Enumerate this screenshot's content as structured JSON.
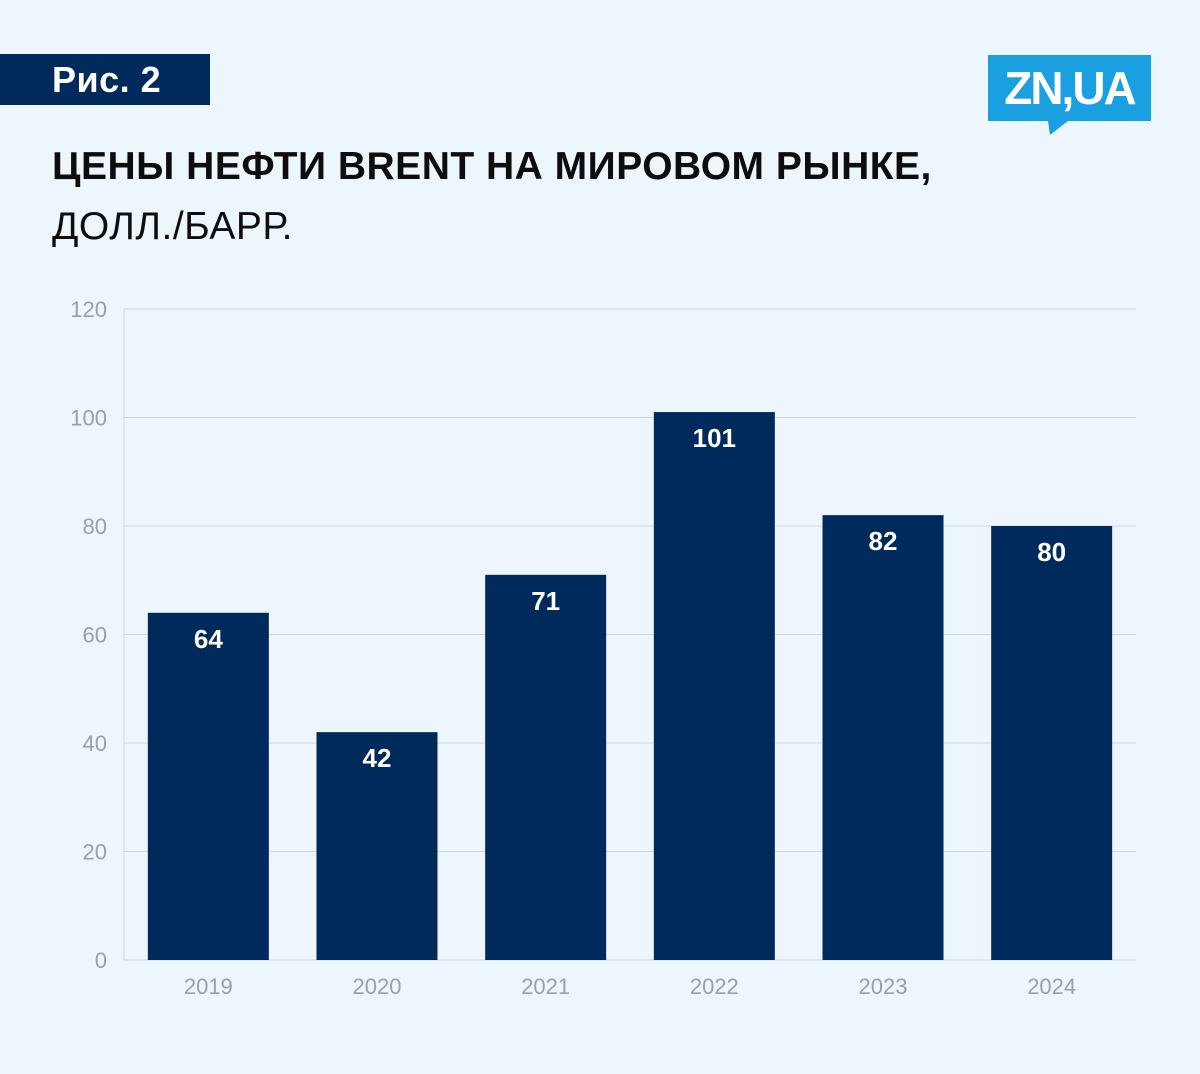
{
  "header": {
    "figure_label": "Рис. 2",
    "logo": "ZN,UA",
    "logo_color": "#1a9fe0",
    "title": "ЦЕНЫ НЕФТИ BRENT НА МИРОВОМ РЫНКЕ,",
    "subtitle": "ДОЛЛ./БАРР."
  },
  "colors": {
    "bar": "#002a5c",
    "background": "#eef6fd",
    "grid": "#d0d5da"
  },
  "chart_data": {
    "type": "bar",
    "title": "ЦЕНЫ НЕФТИ BRENT НА МИРОВОМ РЫНКЕ, ДОЛЛ./БАРР.",
    "xlabel": "",
    "ylabel": "",
    "categories": [
      "2019",
      "2020",
      "2021",
      "2022",
      "2023",
      "2024"
    ],
    "values": [
      64,
      42,
      71,
      101,
      82,
      80
    ],
    "ylim": [
      0,
      120
    ],
    "yticks": [
      0,
      20,
      40,
      60,
      80,
      100,
      120
    ],
    "grid": true,
    "data_labels": true
  }
}
